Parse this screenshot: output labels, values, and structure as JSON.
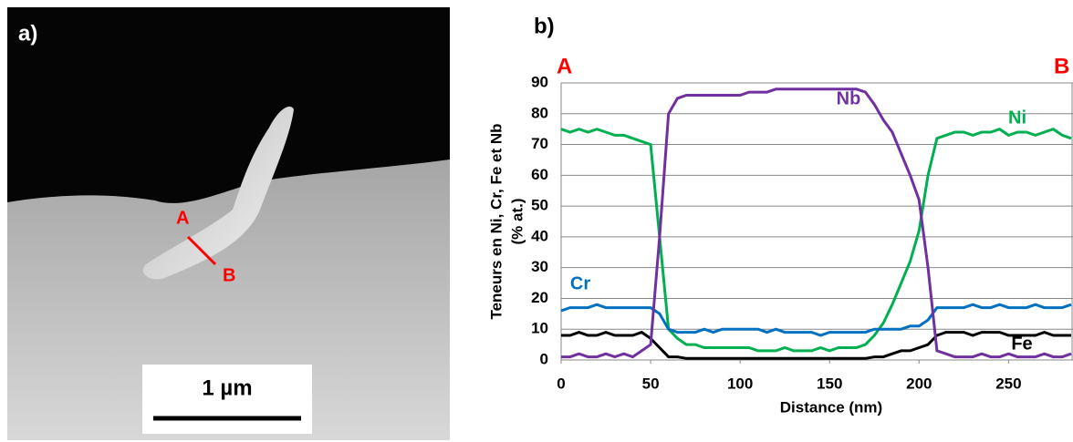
{
  "micrograph": {
    "label": "a)",
    "point_a": "A",
    "point_b": "B",
    "scale_bar": "1 µm"
  },
  "chart_data": {
    "type": "line",
    "title": "b)",
    "endpoint_labels": [
      "A",
      "B"
    ],
    "xlabel": "Distance (nm)",
    "ylabel": [
      "Teneurs en Ni, Cr, Fe et Nb",
      "(% at.)"
    ],
    "xlim": [
      0,
      286
    ],
    "xticks": [
      0,
      50,
      100,
      150,
      200,
      250
    ],
    "ylim": [
      0,
      90
    ],
    "yticks": [
      0,
      10,
      20,
      30,
      40,
      50,
      60,
      70,
      80,
      90
    ],
    "grid": true,
    "x": [
      0,
      5,
      10,
      15,
      20,
      25,
      30,
      35,
      40,
      45,
      50,
      55,
      60,
      65,
      70,
      75,
      80,
      85,
      90,
      95,
      100,
      105,
      110,
      115,
      120,
      125,
      130,
      135,
      140,
      145,
      150,
      155,
      160,
      165,
      170,
      175,
      180,
      185,
      190,
      195,
      200,
      205,
      210,
      215,
      220,
      225,
      230,
      235,
      240,
      245,
      250,
      255,
      260,
      265,
      270,
      275,
      280,
      285
    ],
    "series": [
      {
        "name": "Ni",
        "color": "#00b050",
        "values": [
          75,
          74,
          75,
          74,
          75,
          74,
          73,
          73,
          72,
          71,
          70,
          40,
          10,
          7,
          5,
          5,
          4,
          4,
          4,
          4,
          4,
          4,
          3,
          3,
          3,
          4,
          3,
          3,
          3,
          4,
          3,
          4,
          4,
          4,
          5,
          8,
          12,
          18,
          25,
          32,
          42,
          60,
          72,
          73,
          74,
          74,
          73,
          74,
          74,
          75,
          73,
          74,
          74,
          73,
          74,
          75,
          73,
          72
        ]
      },
      {
        "name": "Cr",
        "color": "#0070c0",
        "values": [
          16,
          17,
          17,
          17,
          18,
          17,
          17,
          17,
          17,
          17,
          17,
          15,
          10,
          9,
          9,
          9,
          10,
          9,
          10,
          10,
          10,
          10,
          10,
          9,
          10,
          9,
          9,
          9,
          9,
          8,
          9,
          9,
          9,
          9,
          9,
          10,
          10,
          10,
          10,
          11,
          11,
          13,
          17,
          17,
          17,
          17,
          18,
          17,
          17,
          18,
          17,
          17,
          17,
          18,
          17,
          17,
          17,
          18
        ]
      },
      {
        "name": "Fe",
        "color": "#000000",
        "values": [
          8,
          8,
          9,
          8,
          8,
          9,
          8,
          8,
          8,
          9,
          7,
          4,
          1,
          1,
          0.5,
          0.5,
          0.5,
          0.5,
          0.5,
          0.5,
          0.5,
          0.5,
          0.5,
          0.5,
          0.5,
          0.5,
          0.5,
          0.5,
          0.5,
          0.5,
          0.5,
          0.5,
          0.5,
          0.5,
          0.5,
          1,
          1,
          2,
          3,
          3,
          4,
          5,
          8,
          9,
          9,
          9,
          8,
          9,
          9,
          9,
          8,
          8,
          8,
          8,
          9,
          8,
          8,
          8
        ]
      },
      {
        "name": "Nb",
        "color": "#7030a0",
        "values": [
          1,
          1,
          2,
          1,
          1,
          2,
          1,
          2,
          1,
          3,
          5,
          40,
          80,
          85,
          86,
          86,
          86,
          86,
          86,
          86,
          86,
          87,
          87,
          87,
          88,
          88,
          88,
          88,
          88,
          88,
          88,
          88,
          88,
          88,
          87,
          83,
          78,
          74,
          67,
          60,
          52,
          30,
          3,
          2,
          1,
          1,
          1,
          2,
          1,
          1,
          2,
          1,
          1,
          1,
          2,
          1,
          1,
          2
        ]
      }
    ]
  }
}
